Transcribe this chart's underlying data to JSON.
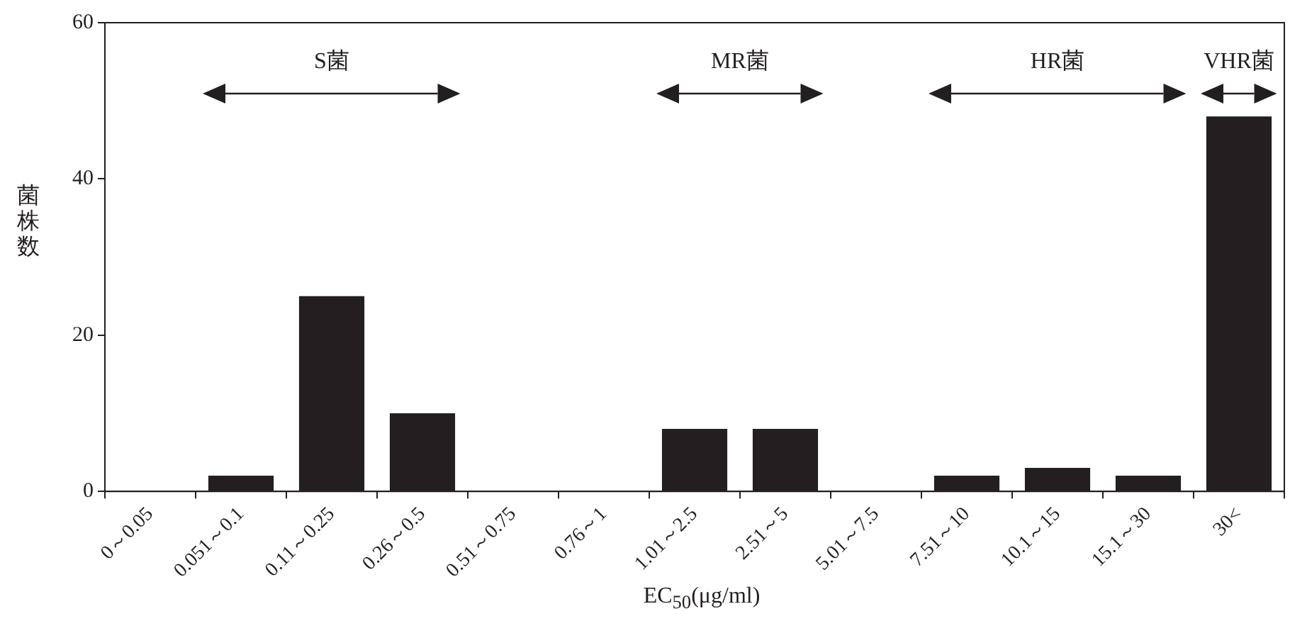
{
  "chart_data": {
    "type": "bar",
    "xlabel": "EC$_{50}$(μg/ml)",
    "ylabel": "菌株数",
    "categories": [
      "0～0.05",
      "0.051～0.1",
      "0.11～0.25",
      "0.26～0.5",
      "0.51～0.75",
      "0.76～1",
      "1.01～2.5",
      "2.51～5",
      "5.01～7.5",
      "7.51～10",
      "10.1～15",
      "15.1～30",
      "30<"
    ],
    "values": [
      0,
      2,
      25,
      10,
      0,
      0,
      8,
      8,
      0,
      2,
      3,
      2,
      48
    ],
    "color": "#231f20",
    "ylim": [
      0,
      60
    ],
    "yticks": [
      0,
      20,
      40,
      60
    ],
    "grid": false,
    "legend": false,
    "annotations": [
      "S菌",
      "MR菌",
      "HR菌",
      "VHR菌"
    ]
  }
}
